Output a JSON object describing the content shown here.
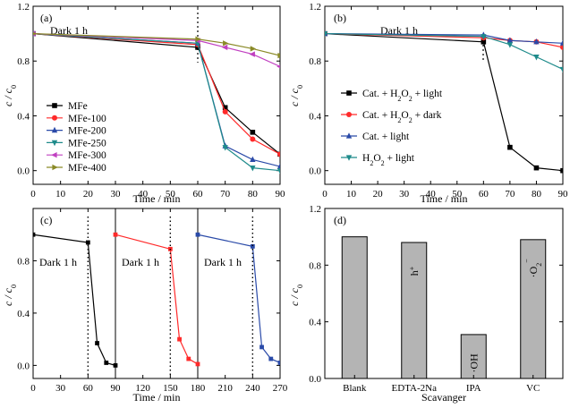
{
  "chart_data": [
    {
      "panel": "(a)",
      "type": "line",
      "annotation": "Dark 1 h",
      "xlabel": "Time / min",
      "ylabel": "c / c0",
      "xlim": [
        0,
        90
      ],
      "ylim": [
        -0.1,
        1.2
      ],
      "xticks": [
        0,
        10,
        20,
        30,
        40,
        50,
        60,
        70,
        80,
        90
      ],
      "yticks": [
        0.0,
        0.4,
        0.8,
        1.2
      ],
      "legend_position": "lower-left",
      "x": [
        0,
        60,
        70,
        80,
        90
      ],
      "series": [
        {
          "name": "MFe",
          "color": "#000000",
          "marker": "square",
          "values": [
            1.0,
            0.9,
            0.46,
            0.28,
            0.12
          ]
        },
        {
          "name": "MFe-100",
          "color": "#ff2a2a",
          "marker": "circle",
          "values": [
            1.0,
            0.92,
            0.43,
            0.23,
            0.12
          ]
        },
        {
          "name": "MFe-200",
          "color": "#2a4aa8",
          "marker": "triangle-up",
          "values": [
            1.0,
            0.93,
            0.18,
            0.08,
            0.03
          ]
        },
        {
          "name": "MFe-250",
          "color": "#1f8b8b",
          "marker": "triangle-down",
          "values": [
            1.0,
            0.93,
            0.17,
            0.02,
            0.0
          ]
        },
        {
          "name": "MFe-300",
          "color": "#c040c0",
          "marker": "triangle-left",
          "values": [
            1.0,
            0.95,
            0.9,
            0.85,
            0.76
          ]
        },
        {
          "name": "MFe-400",
          "color": "#8a8a28",
          "marker": "triangle-right",
          "values": [
            1.0,
            0.96,
            0.93,
            0.89,
            0.84
          ]
        }
      ]
    },
    {
      "panel": "(b)",
      "type": "line",
      "annotation": "Dark 1 h",
      "xlabel": "Time / min",
      "ylabel": "c / c0",
      "xlim": [
        0,
        90
      ],
      "ylim": [
        -0.1,
        1.2
      ],
      "xticks": [
        0,
        10,
        20,
        30,
        40,
        50,
        60,
        70,
        80,
        90
      ],
      "yticks": [
        0.0,
        0.4,
        0.8,
        1.2
      ],
      "legend_position": "center-left",
      "x": [
        0,
        60,
        70,
        80,
        90
      ],
      "series": [
        {
          "name": "Cat. + H2O2 + light",
          "color": "#000000",
          "marker": "square",
          "values": [
            1.0,
            0.94,
            0.17,
            0.02,
            0.0
          ]
        },
        {
          "name": "Cat. + H2O2 + dark",
          "color": "#ff2a2a",
          "marker": "circle",
          "values": [
            1.0,
            0.97,
            0.95,
            0.94,
            0.9
          ]
        },
        {
          "name": "Cat. + light",
          "color": "#2a4aa8",
          "marker": "triangle-up",
          "values": [
            1.0,
            0.99,
            0.95,
            0.94,
            0.93
          ]
        },
        {
          "name": "H2O2 + light",
          "color": "#1f8b8b",
          "marker": "triangle-down",
          "values": [
            1.0,
            0.98,
            0.92,
            0.83,
            0.74
          ]
        }
      ],
      "legend_labels": [
        {
          "pre": "Cat. + H",
          "sub": "2",
          "mid": "O",
          "sub2": "2",
          "post": " + light"
        },
        {
          "pre": "Cat. + H",
          "sub": "2",
          "mid": "O",
          "sub2": "2",
          "post": " + dark"
        },
        {
          "pre": "Cat. + light",
          "sub": "",
          "mid": "",
          "sub2": "",
          "post": ""
        },
        {
          "pre": "H",
          "sub": "2",
          "mid": "O",
          "sub2": "2",
          "post": " + light"
        }
      ]
    },
    {
      "panel": "(c)",
      "type": "line",
      "annotation": "Dark 1 h",
      "xlabel": "Time / min",
      "ylabel": "c / c0",
      "xlim": [
        0,
        270
      ],
      "ylim": [
        -0.1,
        1.2
      ],
      "xticks": [
        0,
        30,
        60,
        90,
        120,
        150,
        180,
        210,
        240,
        270
      ],
      "yticks": [
        0.0,
        0.4,
        0.8
      ],
      "cycles": [
        {
          "color": "#000000",
          "x": [
            0,
            60,
            70,
            80,
            90
          ],
          "values": [
            1.0,
            0.94,
            0.17,
            0.02,
            0.0
          ]
        },
        {
          "color": "#ff2a2a",
          "x": [
            90,
            150,
            160,
            170,
            180
          ],
          "values": [
            1.0,
            0.89,
            0.2,
            0.05,
            0.01
          ]
        },
        {
          "color": "#2a4aa8",
          "x": [
            180,
            240,
            250,
            260,
            270
          ],
          "values": [
            1.0,
            0.91,
            0.14,
            0.05,
            0.02
          ]
        }
      ]
    },
    {
      "panel": "(d)",
      "type": "bar",
      "xlabel": "Scavanger",
      "ylabel": "c / c0",
      "ylim": [
        0,
        1.2
      ],
      "yticks": [
        0.0,
        0.4,
        0.8,
        1.2
      ],
      "bar_color": "#b4b4b4",
      "categories": [
        "Blank",
        "EDTA-2Na",
        "IPA",
        "VC"
      ],
      "values": [
        1.0,
        0.96,
        0.31,
        0.98
      ],
      "bar_labels": [
        "",
        "h+",
        "·OH",
        "·O2−"
      ]
    }
  ]
}
